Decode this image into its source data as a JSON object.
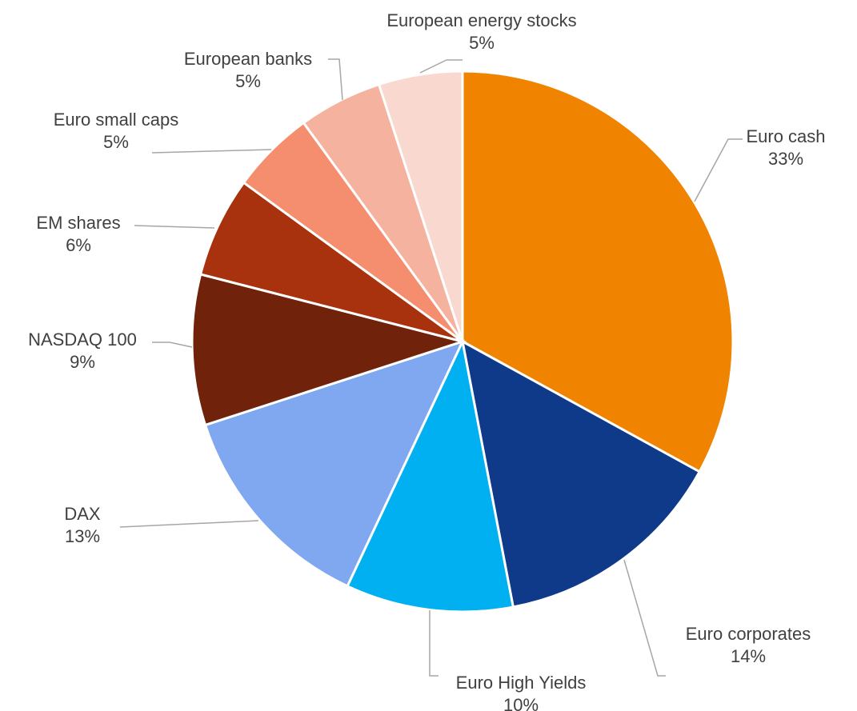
{
  "chart_data": {
    "type": "pie",
    "title": "",
    "slices": [
      {
        "label": "Euro cash",
        "value": 33,
        "display": "33%",
        "color": "#F08300"
      },
      {
        "label": "Euro corporates",
        "value": 14,
        "display": "14%",
        "color": "#0F3A8A"
      },
      {
        "label": "Euro High Yields",
        "value": 10,
        "display": "10%",
        "color": "#00B0F0"
      },
      {
        "label": "DAX",
        "value": 13,
        "display": "13%",
        "color": "#7FA8F0"
      },
      {
        "label": "NASDAQ 100",
        "value": 9,
        "display": "9%",
        "color": "#71220A"
      },
      {
        "label": "EM shares",
        "value": 6,
        "display": "6%",
        "color": "#A8320D"
      },
      {
        "label": "Euro small caps",
        "value": 5,
        "display": "5%",
        "color": "#F48E6E"
      },
      {
        "label": "European banks",
        "value": 5,
        "display": "5%",
        "color": "#F5B39F"
      },
      {
        "label": "European energy stocks",
        "value": 5,
        "display": "5%",
        "color": "#F9D8CF"
      }
    ]
  }
}
